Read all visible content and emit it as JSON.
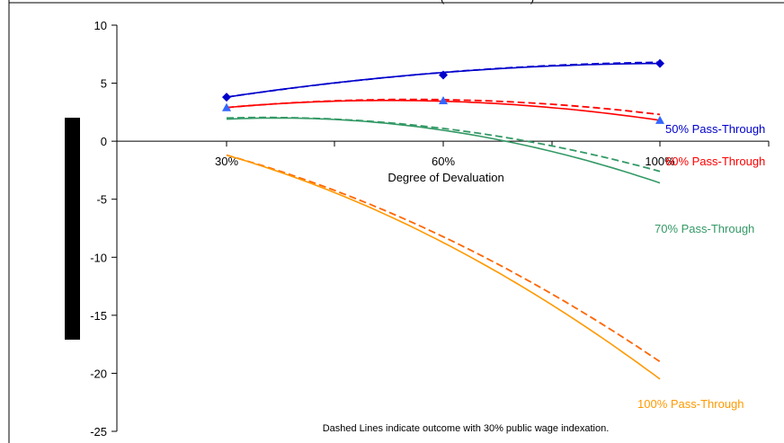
{
  "chart_data": {
    "type": "line",
    "title_fragment": "(",
    "title_fragment_right": ")",
    "xlabel": "Degree of Devaluation",
    "ylabel": "",
    "ylim": [
      -25,
      10
    ],
    "yticks": [
      10,
      5,
      0,
      -5,
      -10,
      -15,
      -20,
      -25
    ],
    "x_tick_labels": [
      "30%",
      "60%",
      "100%"
    ],
    "footnote": "Dashed Lines indicate outcome with 30% public wage indexation.",
    "grid": false,
    "colors": {
      "blue": "#0000CC",
      "red": "#FF0000",
      "green": "#339966",
      "orange": "#FF9900",
      "orange_dashed": "#FF6600",
      "marker": "#3366FF",
      "frame": "#000000"
    },
    "series": [
      {
        "name": "50% Pass-Through",
        "label": "50% Pass-Through",
        "color": "#0000CC",
        "marker": "diamond",
        "x": [
          30,
          60,
          100
        ],
        "solid": [
          3.8,
          5.7,
          6.7
        ],
        "dashed": [
          3.8,
          5.7,
          6.8
        ]
      },
      {
        "name": "60% Pass-Through",
        "label": "60% Pass-Through",
        "color": "#FF0000",
        "marker": "triangle",
        "x": [
          30,
          60,
          100
        ],
        "solid": [
          2.9,
          3.5,
          1.8
        ],
        "dashed": [
          2.9,
          3.6,
          2.3
        ]
      },
      {
        "name": "70% Pass-Through",
        "label": "70% Pass-Through",
        "color": "#339966",
        "marker": "none",
        "x": [
          30,
          60,
          100
        ],
        "solid": [
          1.9,
          1.3,
          -3.6
        ],
        "dashed": [
          2.0,
          1.4,
          -2.6
        ]
      },
      {
        "name": "100% Pass-Through",
        "label": "100% Pass-Through",
        "color": "#FF9900",
        "marker": "none",
        "x": [
          30,
          60,
          100
        ],
        "solid": [
          -1.2,
          -7.4,
          -20.5
        ],
        "dashed": [
          -1.2,
          -7.0,
          -19.0
        ]
      }
    ]
  }
}
